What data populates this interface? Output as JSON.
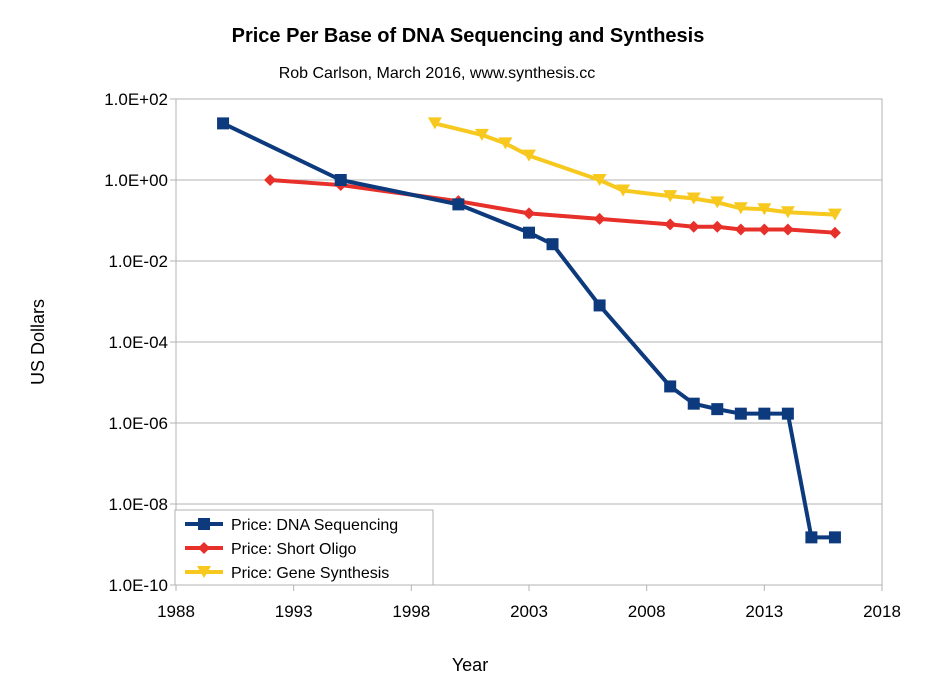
{
  "chart_data": {
    "type": "line",
    "title": "Price Per Base of DNA Sequencing and Synthesis",
    "subtitle": "Rob Carlson, March 2016, www.synthesis.cc",
    "xlabel": "Year",
    "ylabel": "US Dollars",
    "xlim": [
      1988,
      2018
    ],
    "xticks": [
      1988,
      1993,
      1998,
      2003,
      2008,
      2013,
      2018
    ],
    "yscale": "log",
    "ylim": [
      1e-10,
      100
    ],
    "yticks": [
      {
        "value": 100,
        "label": "1.0E+02"
      },
      {
        "value": 1,
        "label": "1.0E+00"
      },
      {
        "value": 0.01,
        "label": "1.0E-02"
      },
      {
        "value": 0.0001,
        "label": "1.0E-04"
      },
      {
        "value": 1e-06,
        "label": "1.0E-06"
      },
      {
        "value": 1e-08,
        "label": "1.0E-08"
      },
      {
        "value": 1e-10,
        "label": "1.0E-10"
      }
    ],
    "grid": "horizontal",
    "legend_position": "bottom-left",
    "series": [
      {
        "name": "Price: DNA Sequencing",
        "color": "#0d3a7c",
        "marker": "square",
        "x": [
          1990,
          1995,
          2000,
          2003,
          2004,
          2006,
          2009,
          2010,
          2011,
          2012,
          2013,
          2014,
          2015,
          2016
        ],
        "y": [
          25,
          1,
          0.25,
          0.05,
          0.026,
          0.0008,
          8e-06,
          3e-06,
          2.2e-06,
          1.7e-06,
          1.7e-06,
          1.7e-06,
          1.5e-09,
          1.5e-09
        ]
      },
      {
        "name": "Price: Short Oligo",
        "color": "#e8302a",
        "marker": "diamond",
        "x": [
          1992,
          1995,
          2000,
          2003,
          2006,
          2009,
          2010,
          2011,
          2012,
          2013,
          2014,
          2016
        ],
        "y": [
          1,
          0.75,
          0.3,
          0.15,
          0.11,
          0.08,
          0.07,
          0.07,
          0.06,
          0.06,
          0.06,
          0.05
        ]
      },
      {
        "name": "Price: Gene Synthesis",
        "color": "#f7c81e",
        "marker": "triangle-down",
        "x": [
          1999,
          2001,
          2002,
          2003,
          2006,
          2007,
          2009,
          2010,
          2011,
          2012,
          2013,
          2014,
          2016
        ],
        "y": [
          25,
          13,
          8,
          4,
          1,
          0.55,
          0.4,
          0.35,
          0.28,
          0.2,
          0.19,
          0.16,
          0.14
        ]
      }
    ]
  }
}
